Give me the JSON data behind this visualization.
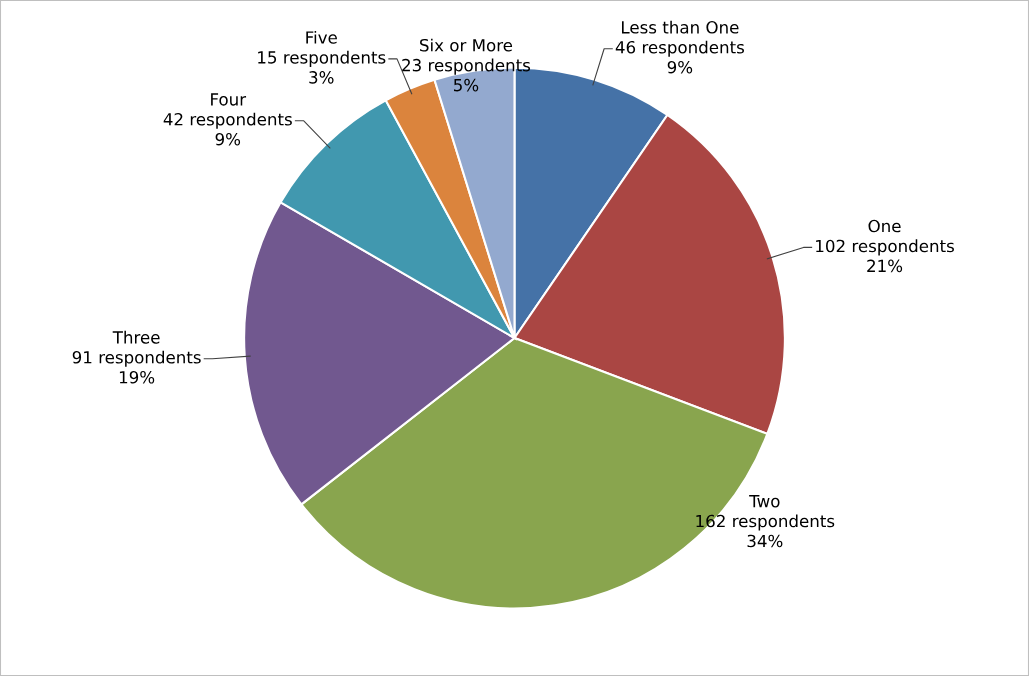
{
  "chart_data": {
    "type": "pie",
    "categories": [
      "Less than One",
      "One",
      "Two",
      "Three",
      "Four",
      "Five",
      "Six or More"
    ],
    "values": [
      46,
      102,
      162,
      91,
      42,
      15,
      23
    ],
    "value_labels": [
      "46 respondents\n9%",
      "102 respondents\n21%",
      "162 respondents\n34%",
      "91 respondents\n19%",
      "42 respondents\n9%",
      "15 respondents\n3%",
      "23 respondents\n5%"
    ],
    "colors": [
      "#4572a7",
      "#aa4643",
      "#89a54e",
      "#71588f",
      "#4198af",
      "#db843d",
      "#93a9cf"
    ],
    "legend": false
  }
}
